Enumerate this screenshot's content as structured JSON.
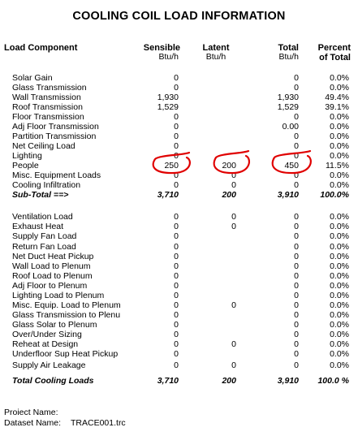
{
  "title": "COOLING COIL LOAD INFORMATION",
  "headers": {
    "component": "Load Component",
    "sensible": "Sensible",
    "sensible_unit": "Btu/h",
    "latent": "Latent",
    "latent_unit": "Btu/h",
    "total": "Total",
    "total_unit": "Btu/h",
    "percent": "Percent",
    "percent_unit": "of Total"
  },
  "rows1": [
    {
      "label": "Solar Gain",
      "sensible": "0",
      "latent": "",
      "total": "0",
      "percent": "0.0%"
    },
    {
      "label": "Glass Transmission",
      "sensible": "0",
      "latent": "",
      "total": "0",
      "percent": "0.0%"
    },
    {
      "label": "Wall Transmission",
      "sensible": "1,930",
      "latent": "",
      "total": "1,930",
      "percent": "49.4%"
    },
    {
      "label": "Roof Transmission",
      "sensible": "1,529",
      "latent": "",
      "total": "1,529",
      "percent": "39.1%"
    },
    {
      "label": "Floor Transmission",
      "sensible": "0",
      "latent": "",
      "total": "0",
      "percent": "0.0%"
    },
    {
      "label": "Adj Floor Transmission",
      "sensible": "0",
      "latent": "",
      "total": "0.00",
      "percent": "0.0%"
    },
    {
      "label": "Partition Transmission",
      "sensible": "0",
      "latent": "",
      "total": "0",
      "percent": "0.0%"
    },
    {
      "label": "Net Ceiling Load",
      "sensible": "0",
      "latent": "",
      "total": "0",
      "percent": "0.0%"
    },
    {
      "label": "Lighting",
      "sensible": "0",
      "latent": "",
      "total": "0",
      "percent": "0.0%"
    },
    {
      "label": "People",
      "sensible": "250",
      "latent": "200",
      "total": "450",
      "percent": "11.5%"
    },
    {
      "label": "Misc. Equipment Loads",
      "sensible": "0",
      "latent": "0",
      "total": "0",
      "percent": "0.0%"
    },
    {
      "label": "Cooling Infiltration",
      "sensible": "0",
      "latent": "0",
      "total": "0",
      "percent": "0.0%"
    }
  ],
  "subtotal": {
    "label": "Sub-Total  ==>",
    "sensible": "3,710",
    "latent": "200",
    "total": "3,910",
    "percent": "100.0%"
  },
  "rows2": [
    {
      "label": "Ventilation Load",
      "sensible": "0",
      "latent": "0",
      "total": "0",
      "percent": "0.0%"
    },
    {
      "label": "Exhaust Heat",
      "sensible": "0",
      "latent": "0",
      "total": "0",
      "percent": "0.0%"
    },
    {
      "label": "Supply Fan Load",
      "sensible": "0",
      "latent": "",
      "total": "0",
      "percent": "0.0%"
    },
    {
      "label": "Return Fan Load",
      "sensible": "0",
      "latent": "",
      "total": "0",
      "percent": "0.0%"
    },
    {
      "label": "Net Duct Heat Pickup",
      "sensible": "0",
      "latent": "",
      "total": "0",
      "percent": "0.0%"
    },
    {
      "label": "Wall Load to Plenum",
      "sensible": "0",
      "latent": "",
      "total": "0",
      "percent": "0.0%"
    },
    {
      "label": "Roof Load to Plenum",
      "sensible": "0",
      "latent": "",
      "total": "0",
      "percent": "0.0%"
    },
    {
      "label": "Adj Floor to Plenum",
      "sensible": "0",
      "latent": "",
      "total": "0",
      "percent": "0.0%"
    },
    {
      "label": "Lighting Load to Plenum",
      "sensible": "0",
      "latent": "",
      "total": "0",
      "percent": "0.0%"
    },
    {
      "label": "Misc. Equip. Load to Plenum",
      "sensible": "0",
      "latent": "0",
      "total": "0",
      "percent": "0.0%"
    },
    {
      "label": "Glass Transmission to Plenu",
      "sensible": "0",
      "latent": "",
      "total": "0",
      "percent": "0.0%"
    },
    {
      "label": "Glass Solar to Plenum",
      "sensible": "0",
      "latent": "",
      "total": "0",
      "percent": "0.0%"
    },
    {
      "label": "Over/Under Sizing",
      "sensible": "0",
      "latent": "",
      "total": "0",
      "percent": "0.0%"
    },
    {
      "label": "Reheat at Design",
      "sensible": "0",
      "latent": "0",
      "total": "0",
      "percent": "0.0%"
    },
    {
      "label": "Underfloor Sup Heat Pickup",
      "sensible": "0",
      "latent": "",
      "total": "0",
      "percent": "0.0%"
    },
    {
      "label": "Supply Air Leakage",
      "sensible": "0",
      "latent": "0",
      "total": "0",
      "percent": "0.0%"
    }
  ],
  "grandtotal": {
    "label": "Total Cooling Loads",
    "sensible": "3,710",
    "latent": "200",
    "total": "3,910",
    "percent": "100.0 %"
  },
  "footer": {
    "project_label": "Proiect Name:",
    "dataset_label": "Dataset Name:",
    "dataset_value": "TRACE001.trc"
  },
  "annotation_color": "#e00000"
}
